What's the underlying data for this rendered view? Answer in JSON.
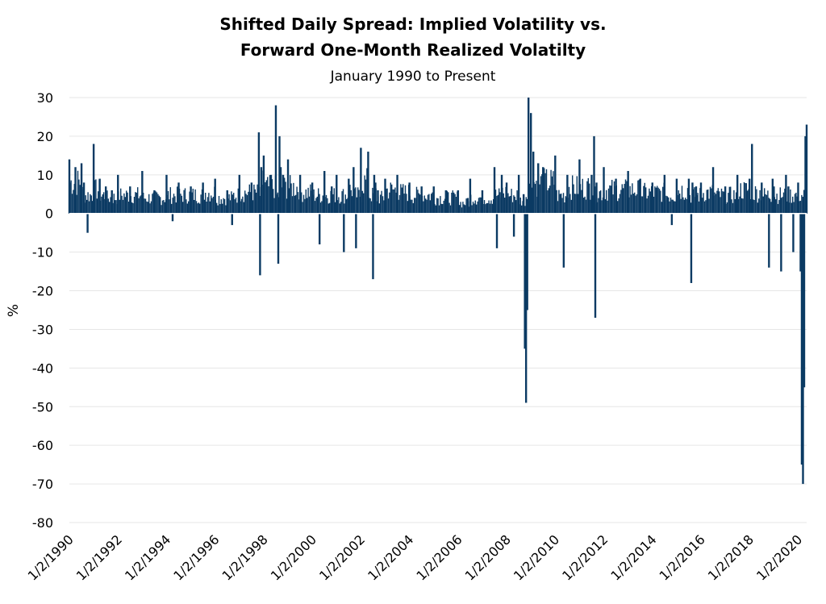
{
  "chart_data": {
    "type": "bar",
    "title_line1": "Shifted Daily Spread: Implied Volatility vs.",
    "title_line2": "Forward One-Month Realized Volatilty",
    "subtitle": "January 1990 to Present",
    "ylabel": "%",
    "ylim": [
      -80,
      30
    ],
    "yticks": [
      30,
      20,
      10,
      0,
      -10,
      -20,
      -30,
      -40,
      -50,
      -60,
      -70,
      -80
    ],
    "x_tick_labels": [
      "1/2/1990",
      "1/2/1992",
      "1/2/1994",
      "1/2/1996",
      "1/2/1998",
      "1/2/2000",
      "1/2/2002",
      "1/2/2004",
      "1/2/2006",
      "1/2/2008",
      "1/2/2010",
      "1/2/2012",
      "1/2/2014",
      "1/2/2016",
      "1/2/2018",
      "1/2/2020"
    ],
    "xlim_years": [
      1990.0,
      2020.35
    ],
    "grid": true,
    "bar_color": "#0b3a63",
    "series": [
      {
        "x_years": [
          1990.0,
          1990.25,
          1990.5,
          1990.6,
          1990.75,
          1991.0,
          1991.25,
          1991.5,
          1991.75,
          1992.0,
          1992.5,
          1993.0,
          1993.5,
          1994.0,
          1994.25,
          1994.5,
          1995.0,
          1995.5,
          1996.0,
          1996.5,
          1996.7,
          1997.0,
          1997.5,
          1997.8,
          1997.85,
          1997.9,
          1998.0,
          1998.3,
          1998.5,
          1998.6,
          1998.65,
          1998.7,
          1998.8,
          1999.0,
          1999.5,
          2000.0,
          2000.3,
          2000.5,
          2000.8,
          2001.0,
          2001.3,
          2001.5,
          2001.7,
          2001.8,
          2002.0,
          2002.3,
          2002.5,
          2002.55,
          2002.6,
          2002.7,
          2003.0,
          2003.5,
          2004.0,
          2004.5,
          2005.0,
          2005.5,
          2006.0,
          2006.4,
          2006.5,
          2007.0,
          2007.5,
          2007.6,
          2007.8,
          2008.0,
          2008.3,
          2008.5,
          2008.7,
          2008.75,
          2008.8,
          2008.85,
          2008.9,
          2009.0,
          2009.1,
          2009.3,
          2009.5,
          2010.0,
          2010.35,
          2010.5,
          2011.0,
          2011.5,
          2011.6,
          2011.65,
          2011.7,
          2012.0,
          2012.5,
          2013.0,
          2013.5,
          2014.0,
          2014.5,
          2014.8,
          2015.0,
          2015.5,
          2015.6,
          2015.65,
          2015.8,
          2016.0,
          2016.5,
          2017.0,
          2017.5,
          2018.0,
          2018.1,
          2018.5,
          2018.8,
          2018.95,
          2019.0,
          2019.3,
          2019.5,
          2019.6,
          2019.8,
          2020.0,
          2020.1,
          2020.15,
          2020.2,
          2020.25,
          2020.3,
          2020.35
        ],
        "values": [
          14,
          12,
          13,
          8,
          -5,
          18,
          9,
          7,
          6,
          10,
          7,
          11,
          6,
          10,
          -2,
          8,
          7,
          8,
          9,
          6,
          -3,
          10,
          8,
          21,
          -16,
          12,
          15,
          10,
          28,
          -13,
          20,
          12,
          10,
          14,
          10,
          8,
          -8,
          11,
          7,
          10,
          -10,
          9,
          12,
          -9,
          17,
          16,
          -17,
          10,
          8,
          6,
          9,
          10,
          8,
          7,
          7,
          6,
          6,
          4,
          9,
          6,
          12,
          -9,
          10,
          8,
          -6,
          10,
          5,
          -35,
          -49,
          -25,
          30,
          26,
          16,
          13,
          12,
          15,
          -14,
          10,
          14,
          10,
          20,
          -27,
          8,
          12,
          9,
          11,
          9,
          8,
          10,
          -3,
          9,
          9,
          -18,
          8,
          7,
          8,
          12,
          7,
          10,
          9,
          18,
          8,
          -14,
          9,
          7,
          -15,
          10,
          7,
          -10,
          8,
          -15,
          -65,
          -70,
          -45,
          20,
          23
        ]
      }
    ]
  }
}
